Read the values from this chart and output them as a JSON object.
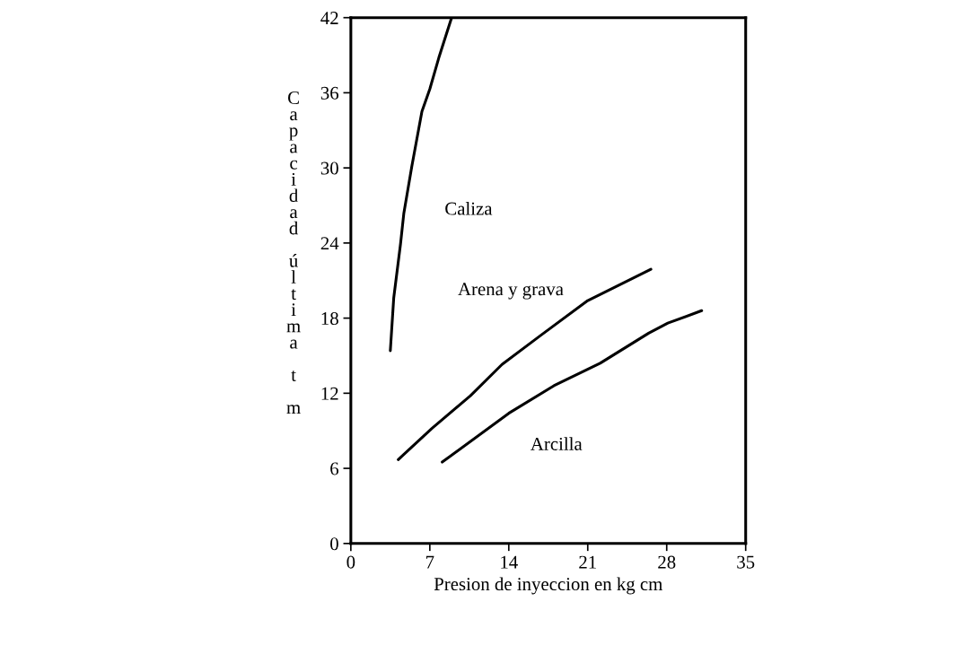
{
  "chart_data": {
    "type": "line",
    "xlabel": "Presion de inyeccion en kg cm",
    "ylabel": "Capacidad última t m",
    "xlim": [
      0,
      35
    ],
    "xticks": [
      0,
      7,
      14,
      21,
      28,
      35
    ],
    "ylim": [
      0,
      42
    ],
    "yticks": [
      0,
      6,
      12,
      18,
      24,
      30,
      36,
      42
    ],
    "grid": false,
    "legend": false,
    "marker": "none",
    "line_style": "solid",
    "series": [
      {
        "name": "Caliza",
        "color": "#000000",
        "x": [
          3.5,
          3.8,
          4.4,
          4.7,
          5.4,
          6.3,
          7.0,
          7.8,
          8.9
        ],
        "values": [
          15.4,
          19.6,
          23.9,
          26.4,
          30.1,
          34.5,
          36.3,
          38.8,
          41.9
        ]
      },
      {
        "name": "Arena y grava",
        "color": "#000000",
        "x": [
          4.2,
          7.2,
          10.6,
          13.4,
          16.8,
          21.0,
          26.6
        ],
        "values": [
          6.7,
          9.2,
          11.8,
          14.3,
          16.6,
          19.4,
          21.9
        ]
      },
      {
        "name": "Arcilla",
        "color": "#000000",
        "x": [
          8.1,
          14.0,
          18.0,
          22.1,
          26.4,
          28.1,
          31.1
        ],
        "values": [
          6.5,
          10.4,
          12.6,
          14.4,
          16.8,
          17.6,
          18.6
        ]
      }
    ]
  }
}
